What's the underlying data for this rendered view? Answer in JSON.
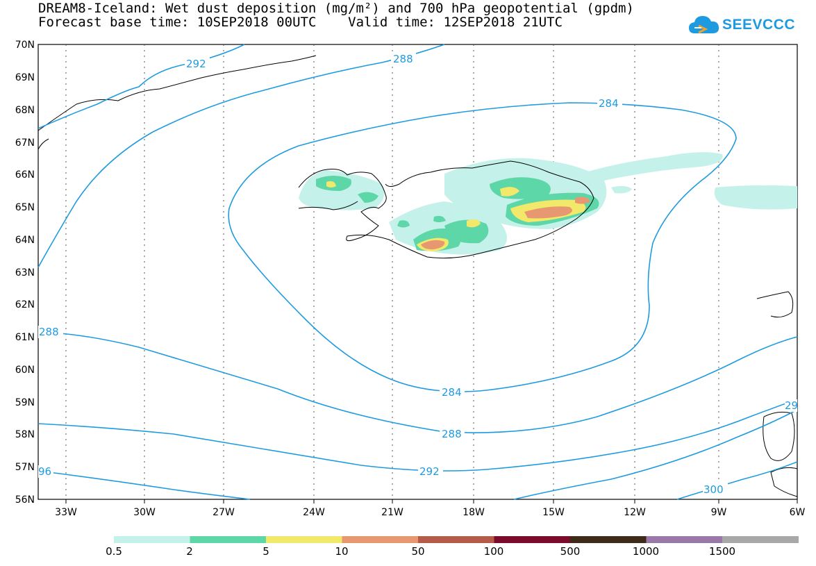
{
  "title": {
    "line1": "DREAM8-Iceland: Wet dust deposition (mg/m²) and 700 hPa geopotential (gpdm)",
    "line2_label_base": "Forecast base time:",
    "base_time": "10SEP2018 00UTC",
    "line2_label_valid": "Valid time:",
    "valid_time": "12SEP2018 21UTC"
  },
  "logo": {
    "text": "SEEVCCC",
    "color": "#1e9be0"
  },
  "map": {
    "lon_labels": [
      "33W",
      "30W",
      "27W",
      "24W",
      "21W",
      "18W",
      "15W",
      "12W",
      "9W",
      "6W"
    ],
    "lat_labels": [
      "70N",
      "69N",
      "68N",
      "67N",
      "66N",
      "65N",
      "64N",
      "63N",
      "62N",
      "61N",
      "60N",
      "59N",
      "58N",
      "57N",
      "56N"
    ],
    "contour_labels": [
      "292",
      "288",
      "284",
      "288",
      "284",
      "288",
      "292",
      "96",
      "300",
      "29"
    ],
    "contour_color": "#1e9be0"
  },
  "legend": {
    "labels": [
      "0.5",
      "2",
      "5",
      "10",
      "50",
      "100",
      "500",
      "1000",
      "1500"
    ],
    "colors": [
      "#c4f1ea",
      "#5ed7a8",
      "#f2e86a",
      "#e89870",
      "#b55b4a",
      "#7b0b2a",
      "#3d2a18",
      "#9a78a8",
      "#a8a8a8"
    ]
  }
}
